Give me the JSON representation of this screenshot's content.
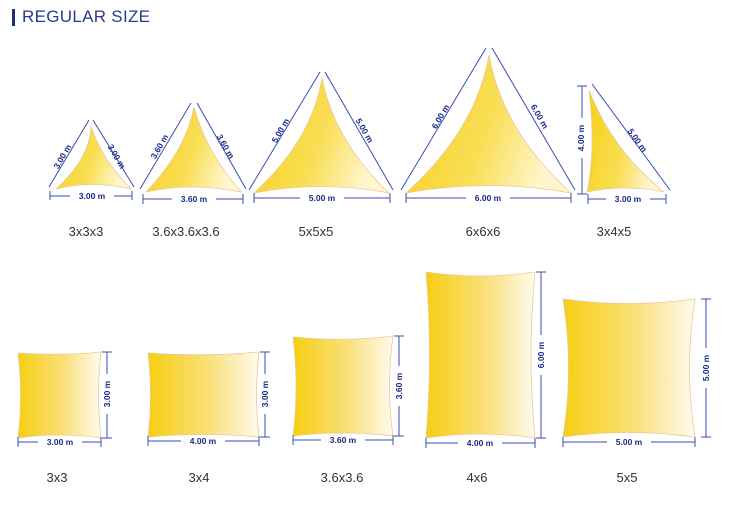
{
  "header": {
    "title": "REGULAR SIZE"
  },
  "colors": {
    "sail_yellow": "#f7d21b",
    "sail_light": "#fff8d6",
    "dim_line": "#3a4cb0",
    "dim_text": "#1a2a8a",
    "title": "#2a3a8c"
  },
  "triangles": [
    {
      "caption": "3x3x3",
      "dims": [
        "3.00 m",
        "3.00 m",
        "3.00 m"
      ]
    },
    {
      "caption": "3.6x3.6x3.6",
      "dims": [
        "3.60 m",
        "3.60 m",
        "3.60 m"
      ]
    },
    {
      "caption": "5x5x5",
      "dims": [
        "5.00 m",
        "5.00 m",
        "5.00 m"
      ]
    },
    {
      "caption": "6x6x6",
      "dims": [
        "6.00 m",
        "6.00 m",
        "6.00 m"
      ]
    },
    {
      "caption": "3x4x5",
      "dims": [
        "4.00 m",
        "5.00 m",
        "3.00 m"
      ]
    }
  ],
  "rectangles": [
    {
      "caption": "3x3",
      "dims": [
        "3.00 m",
        "3.00 m"
      ]
    },
    {
      "caption": "3x4",
      "dims": [
        "4.00 m",
        "3.00 m"
      ]
    },
    {
      "caption": "3.6x3.6",
      "dims": [
        "3.60 m",
        "3.60 m"
      ]
    },
    {
      "caption": "4x6",
      "dims": [
        "4.00 m",
        "6.00 m"
      ]
    },
    {
      "caption": "5x5",
      "dims": [
        "5.00 m",
        "5.00 m"
      ]
    }
  ]
}
